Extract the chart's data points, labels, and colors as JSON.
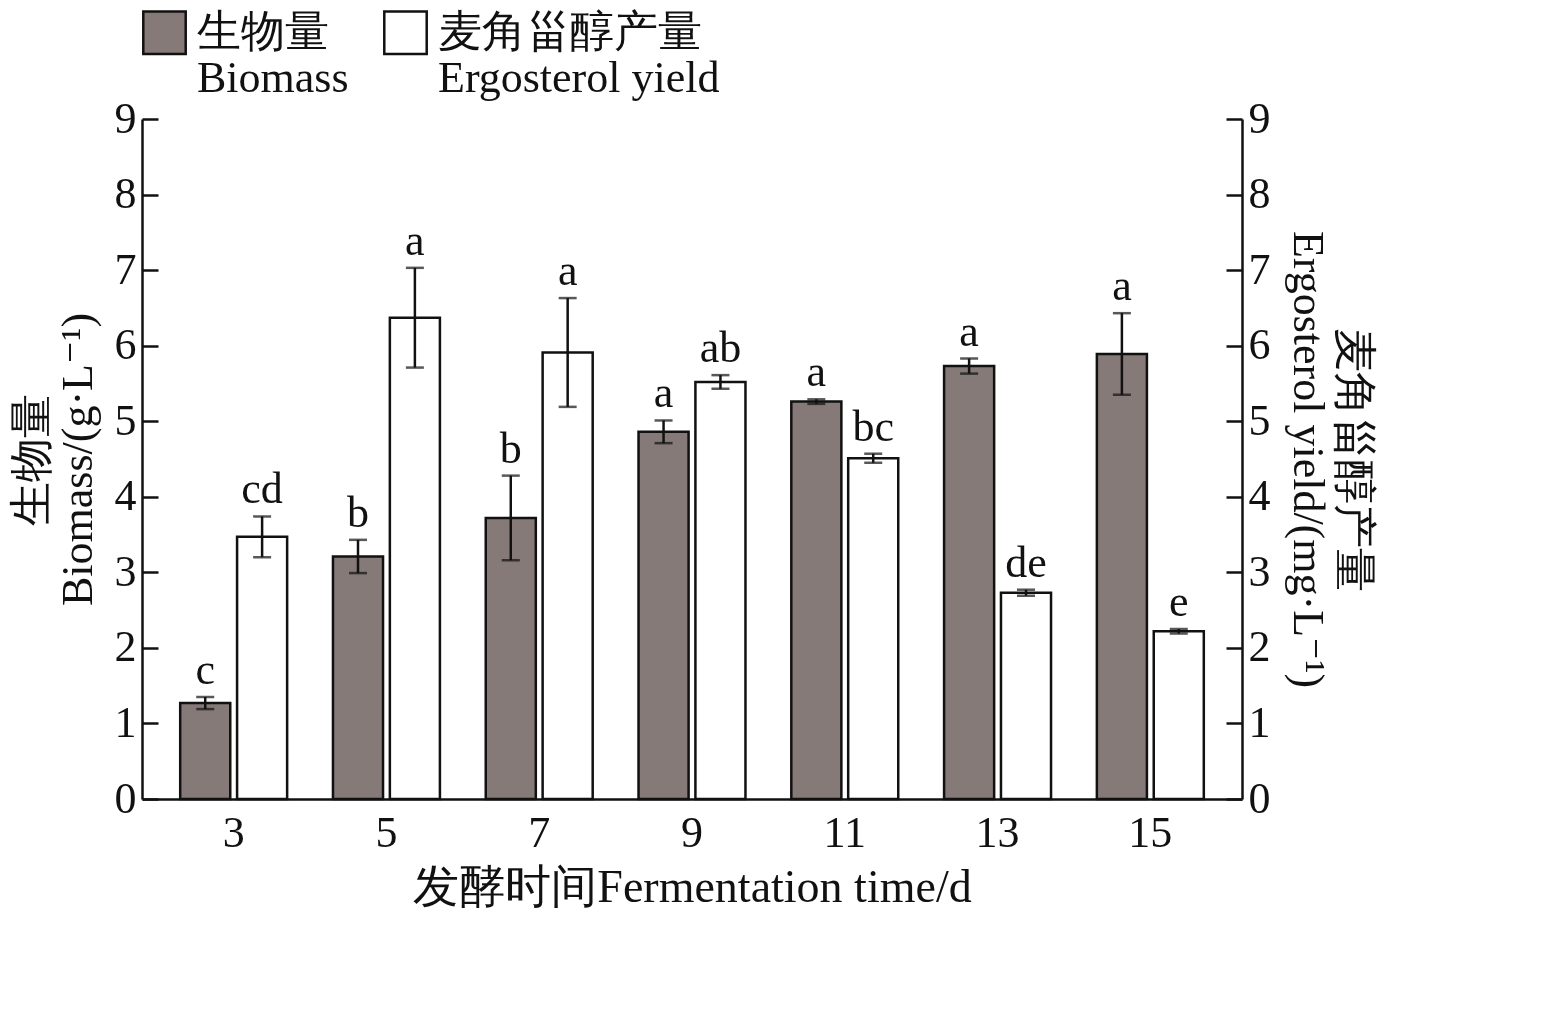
{
  "chart_data": {
    "type": "bar",
    "xlabel": "发酵时间Fermentation time/d",
    "ylabel": "生物量\nBiomass/(g·L⁻¹)",
    "y2label": "麦角甾醇产量\nErgosterol yield/(mg·L⁻¹)",
    "categories": [
      "3",
      "5",
      "7",
      "9",
      "11",
      "13",
      "15"
    ],
    "series": [
      {
        "name": "生物量\nBiomass",
        "color": "#857a78",
        "values": [
          1.27,
          3.21,
          3.72,
          4.86,
          5.26,
          5.73,
          5.89
        ],
        "errors": [
          0.08,
          0.22,
          0.56,
          0.15,
          0.03,
          0.1,
          0.54
        ],
        "value_labels": [
          "c",
          "b",
          "b",
          "a",
          "a",
          "a",
          "a"
        ]
      },
      {
        "name": "麦角甾醇产量\nErgosterol yield",
        "color": "#ffffff",
        "axis": "y2",
        "values": [
          3.47,
          6.37,
          5.91,
          5.52,
          4.51,
          2.73,
          2.22
        ],
        "errors": [
          0.27,
          0.66,
          0.72,
          0.09,
          0.06,
          0.04,
          0.03
        ],
        "value_labels": [
          "cd",
          "a",
          "a",
          "ab",
          "bc",
          "de",
          "e"
        ]
      }
    ],
    "ylim": [
      0,
      9
    ],
    "yticks": [
      0,
      1,
      2,
      3,
      4,
      5,
      6,
      7,
      8,
      9
    ],
    "y2lim": [
      0,
      9
    ],
    "y2ticks": [
      0,
      1,
      2,
      3,
      4,
      5,
      6,
      7,
      8,
      9
    ],
    "legend": "top",
    "grid": false
  }
}
